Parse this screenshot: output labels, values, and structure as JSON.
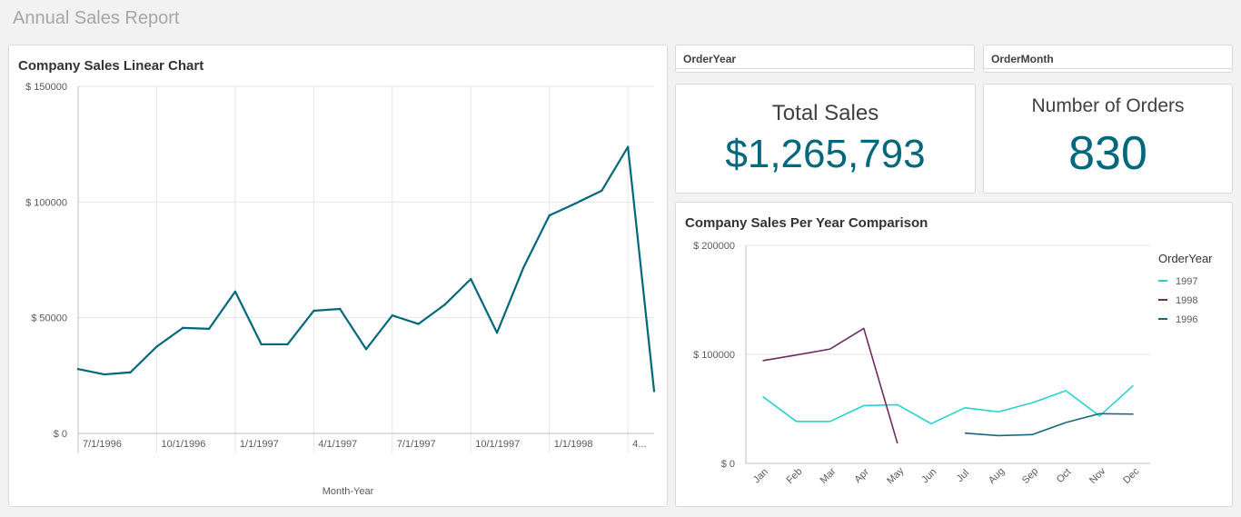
{
  "report": {
    "title": "Annual Sales Report"
  },
  "filters": {
    "year_label": "OrderYear",
    "month_label": "OrderMonth"
  },
  "kpis": {
    "sales_label": "Total Sales",
    "sales_value": "$1,265,793",
    "orders_label": "Number of Orders",
    "orders_value": "830"
  },
  "chart_data": [
    {
      "type": "line",
      "title": "Company Sales Linear Chart",
      "xlabel": "Month-Year",
      "ylabel": "",
      "ylim": [
        0,
        150000
      ],
      "yticks": [
        {
          "value": 0,
          "label": "$ 0"
        },
        {
          "value": 50000,
          "label": "$ 50000"
        },
        {
          "value": 100000,
          "label": "$ 100000"
        },
        {
          "value": 150000,
          "label": "$ 150000"
        }
      ],
      "xtick_labels": [
        "7/1/1996",
        "10/1/1996",
        "1/1/1997",
        "4/1/1997",
        "7/1/1997",
        "10/1/1997",
        "1/1/1998",
        "4..."
      ],
      "grid": true,
      "color": "#00687d",
      "series": [
        {
          "x": [
            "1996-07",
            "1996-08",
            "1996-09",
            "1996-10",
            "1996-11",
            "1996-12",
            "1997-01",
            "1997-02",
            "1997-03",
            "1997-04",
            "1997-05",
            "1997-06",
            "1997-07",
            "1997-08",
            "1997-09",
            "1997-10",
            "1997-11",
            "1997-12",
            "1998-01",
            "1998-02",
            "1998-03",
            "1998-04",
            "1998-05"
          ],
          "values": [
            27800,
            25500,
            26400,
            37500,
            45600,
            45200,
            61300,
            38500,
            38500,
            53000,
            53800,
            36400,
            51000,
            47300,
            55600,
            66700,
            43500,
            71400,
            94200,
            99400,
            104900,
            123800,
            18300
          ]
        }
      ]
    },
    {
      "type": "line",
      "title": "Company Sales Per Year Comparison",
      "xlabel": "",
      "ylabel": "",
      "ylim": [
        0,
        200000
      ],
      "yticks": [
        {
          "value": 0,
          "label": "$ 0"
        },
        {
          "value": 100000,
          "label": "$ 100000"
        },
        {
          "value": 200000,
          "label": "$ 200000"
        }
      ],
      "categories": [
        "Jan",
        "Feb",
        "Mar",
        "Apr",
        "May",
        "Jun",
        "Jul",
        "Aug",
        "Sep",
        "Oct",
        "Nov",
        "Dec"
      ],
      "legend_title": "OrderYear",
      "legend_position": "right",
      "series": [
        {
          "name": "1997",
          "color": "#2ad1d1",
          "values": [
            61300,
            38500,
            38500,
            53000,
            53800,
            36400,
            51000,
            47300,
            55600,
            66700,
            43500,
            71400
          ]
        },
        {
          "name": "1998",
          "color": "#6e2b62",
          "values": [
            94200,
            99400,
            104900,
            123800,
            18300,
            null,
            null,
            null,
            null,
            null,
            null,
            null
          ]
        },
        {
          "name": "1996",
          "color": "#1a6480",
          "values": [
            null,
            null,
            null,
            null,
            null,
            null,
            27800,
            25500,
            26400,
            37500,
            45600,
            45200
          ]
        }
      ]
    }
  ]
}
